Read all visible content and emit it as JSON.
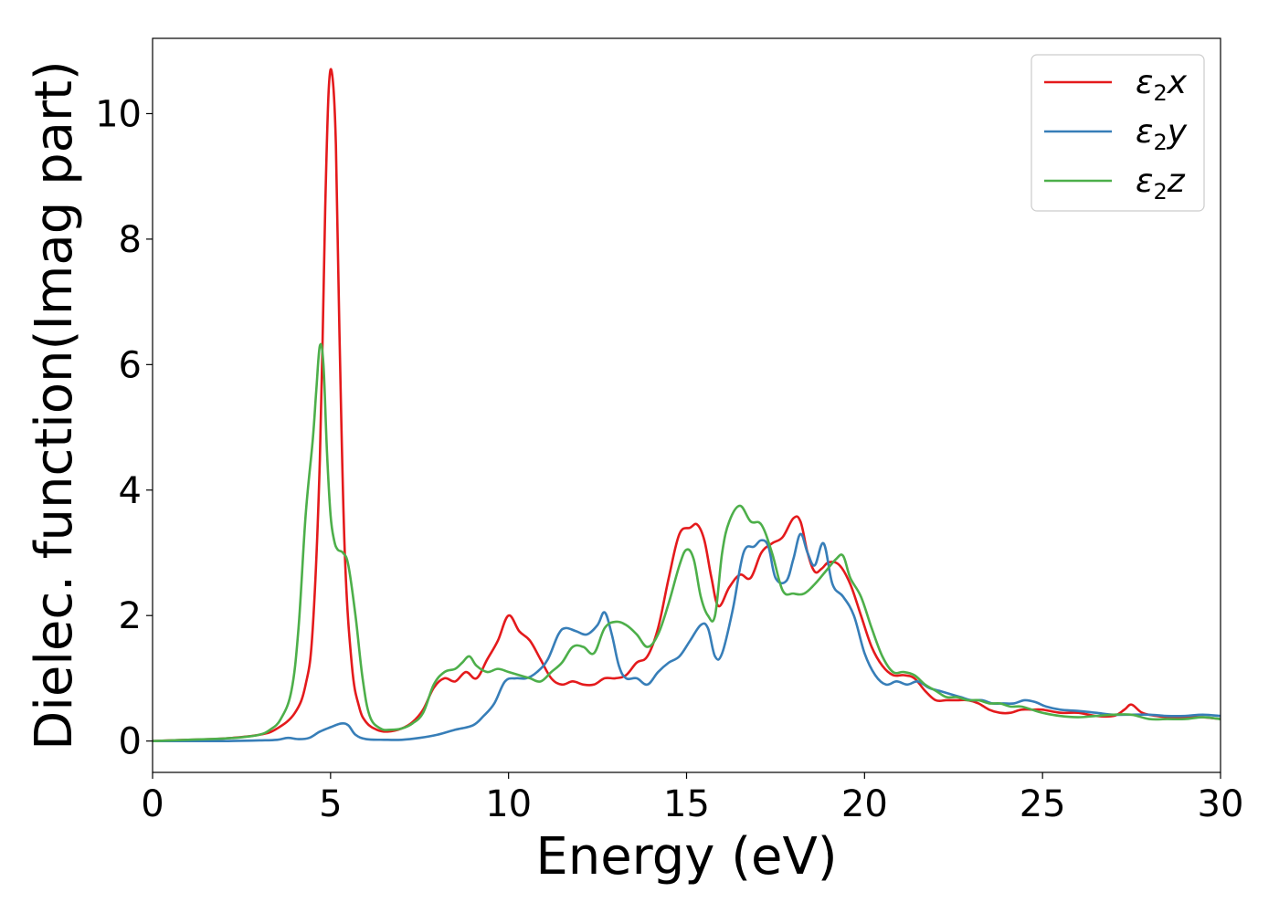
{
  "chart_data": {
    "type": "line",
    "title": "",
    "xlabel": "Energy (eV)",
    "ylabel": "Dielec. function(Imag part)",
    "xlim": [
      0,
      30
    ],
    "ylim": [
      -0.5,
      11.2
    ],
    "xticks": [
      0,
      5,
      10,
      15,
      20,
      25,
      30
    ],
    "yticks": [
      0,
      2,
      4,
      6,
      8,
      10
    ],
    "grid": false,
    "legend_position": "top-right",
    "series": [
      {
        "name": "ε₂x",
        "legend": {
          "base": "ε",
          "sub": "2",
          "suffix": "x"
        },
        "color": "#e41a1c",
        "x": [
          0,
          1,
          2,
          3,
          3.5,
          4,
          4.3,
          4.5,
          4.7,
          4.85,
          4.95,
          5.05,
          5.15,
          5.25,
          5.4,
          5.6,
          5.8,
          6.0,
          6.3,
          6.6,
          7.0,
          7.3,
          7.6,
          7.9,
          8.2,
          8.5,
          8.8,
          9.1,
          9.4,
          9.7,
          10.0,
          10.3,
          10.6,
          10.9,
          11.2,
          11.5,
          11.8,
          12.1,
          12.4,
          12.7,
          13.0,
          13.3,
          13.6,
          13.9,
          14.2,
          14.5,
          14.8,
          15.1,
          15.3,
          15.5,
          15.7,
          15.9,
          16.2,
          16.5,
          16.8,
          17.1,
          17.4,
          17.7,
          18.0,
          18.2,
          18.4,
          18.6,
          18.8,
          19.0,
          19.3,
          19.6,
          19.9,
          20.2,
          20.5,
          20.8,
          21.1,
          21.4,
          21.7,
          22.0,
          22.3,
          22.6,
          22.9,
          23.2,
          23.5,
          23.8,
          24.1,
          24.4,
          24.7,
          25.0,
          25.5,
          26.0,
          26.5,
          27.0,
          27.3,
          27.5,
          27.8,
          28.2,
          28.6,
          29.0,
          29.5,
          30.0
        ],
        "y": [
          0.0,
          0.02,
          0.04,
          0.1,
          0.2,
          0.45,
          0.9,
          1.8,
          4.5,
          8.5,
          10.4,
          10.6,
          9.5,
          6.5,
          3.0,
          1.2,
          0.55,
          0.3,
          0.18,
          0.15,
          0.2,
          0.3,
          0.5,
          0.85,
          1.0,
          0.95,
          1.1,
          1.0,
          1.3,
          1.6,
          2.0,
          1.75,
          1.6,
          1.3,
          1.0,
          0.9,
          0.95,
          0.9,
          0.9,
          1.0,
          1.0,
          1.05,
          1.25,
          1.35,
          1.8,
          2.6,
          3.3,
          3.4,
          3.45,
          3.2,
          2.6,
          2.15,
          2.45,
          2.65,
          2.6,
          3.0,
          3.15,
          3.25,
          3.55,
          3.5,
          3.0,
          2.7,
          2.75,
          2.85,
          2.8,
          2.5,
          2.0,
          1.5,
          1.2,
          1.05,
          1.05,
          1.0,
          0.8,
          0.65,
          0.65,
          0.65,
          0.65,
          0.6,
          0.5,
          0.45,
          0.45,
          0.5,
          0.5,
          0.5,
          0.45,
          0.45,
          0.4,
          0.4,
          0.5,
          0.58,
          0.45,
          0.4,
          0.38,
          0.38,
          0.38,
          0.35
        ]
      },
      {
        "name": "ε₂y",
        "legend": {
          "base": "ε",
          "sub": "2",
          "suffix": "y"
        },
        "color": "#377eb8",
        "x": [
          0,
          1,
          2,
          3,
          3.5,
          3.8,
          4.1,
          4.4,
          4.7,
          5.0,
          5.3,
          5.5,
          5.7,
          6.0,
          6.5,
          7.0,
          7.5,
          8.0,
          8.5,
          9.0,
          9.3,
          9.6,
          9.9,
          10.2,
          10.5,
          10.8,
          11.1,
          11.4,
          11.6,
          11.9,
          12.2,
          12.5,
          12.7,
          12.9,
          13.1,
          13.3,
          13.6,
          13.9,
          14.2,
          14.5,
          14.8,
          15.1,
          15.4,
          15.6,
          15.8,
          16.0,
          16.3,
          16.6,
          16.9,
          17.1,
          17.3,
          17.5,
          17.8,
          18.0,
          18.2,
          18.4,
          18.6,
          18.85,
          19.1,
          19.4,
          19.7,
          20.0,
          20.3,
          20.6,
          20.9,
          21.2,
          21.5,
          21.8,
          22.1,
          22.4,
          22.7,
          23.0,
          23.3,
          23.6,
          23.9,
          24.2,
          24.5,
          24.8,
          25.1,
          25.5,
          26.0,
          26.5,
          27.0,
          27.5,
          28.0,
          28.5,
          29.0,
          29.5,
          30.0
        ],
        "y": [
          0.0,
          0.0,
          0.0,
          0.01,
          0.02,
          0.05,
          0.03,
          0.05,
          0.15,
          0.22,
          0.28,
          0.25,
          0.1,
          0.03,
          0.02,
          0.02,
          0.05,
          0.1,
          0.18,
          0.25,
          0.4,
          0.6,
          0.95,
          1.0,
          1.0,
          1.1,
          1.3,
          1.7,
          1.8,
          1.75,
          1.7,
          1.85,
          2.05,
          1.7,
          1.2,
          1.0,
          1.0,
          0.9,
          1.1,
          1.25,
          1.35,
          1.6,
          1.85,
          1.8,
          1.35,
          1.4,
          2.1,
          3.0,
          3.1,
          3.2,
          3.1,
          2.6,
          2.55,
          2.9,
          3.3,
          3.0,
          2.8,
          3.15,
          2.5,
          2.3,
          2.0,
          1.4,
          1.05,
          0.9,
          0.95,
          0.9,
          0.95,
          0.85,
          0.8,
          0.75,
          0.7,
          0.65,
          0.65,
          0.6,
          0.6,
          0.6,
          0.65,
          0.62,
          0.55,
          0.5,
          0.48,
          0.45,
          0.42,
          0.42,
          0.42,
          0.4,
          0.4,
          0.42,
          0.4
        ]
      },
      {
        "name": "ε₂z",
        "legend": {
          "base": "ε",
          "sub": "2",
          "suffix": "z"
        },
        "color": "#4daf4a",
        "x": [
          0,
          1,
          2,
          2.5,
          3.0,
          3.3,
          3.6,
          3.9,
          4.1,
          4.3,
          4.5,
          4.6,
          4.7,
          4.8,
          4.9,
          5.0,
          5.1,
          5.2,
          5.35,
          5.5,
          5.7,
          5.9,
          6.1,
          6.4,
          6.7,
          7.0,
          7.3,
          7.6,
          7.9,
          8.2,
          8.5,
          8.7,
          8.9,
          9.1,
          9.4,
          9.7,
          10.0,
          10.3,
          10.6,
          10.9,
          11.2,
          11.5,
          11.8,
          12.1,
          12.4,
          12.7,
          13.0,
          13.3,
          13.6,
          13.9,
          14.2,
          14.5,
          14.8,
          15.0,
          15.2,
          15.4,
          15.6,
          15.8,
          16.0,
          16.2,
          16.5,
          16.8,
          17.1,
          17.4,
          17.7,
          18.0,
          18.3,
          18.6,
          18.9,
          19.2,
          19.4,
          19.6,
          19.9,
          20.2,
          20.5,
          20.8,
          21.1,
          21.4,
          21.7,
          22.0,
          22.3,
          22.6,
          22.9,
          23.2,
          23.5,
          23.8,
          24.1,
          24.4,
          24.7,
          25.0,
          25.5,
          26.0,
          26.5,
          27.0,
          27.5,
          28.0,
          28.5,
          29.0,
          29.5,
          30.0
        ],
        "y": [
          0.0,
          0.02,
          0.04,
          0.06,
          0.1,
          0.18,
          0.35,
          0.8,
          1.8,
          3.6,
          4.8,
          5.6,
          6.3,
          6.0,
          4.6,
          3.6,
          3.2,
          3.05,
          3.0,
          2.8,
          2.0,
          1.0,
          0.4,
          0.2,
          0.18,
          0.2,
          0.28,
          0.45,
          0.9,
          1.1,
          1.15,
          1.25,
          1.35,
          1.2,
          1.1,
          1.15,
          1.1,
          1.05,
          1.0,
          0.95,
          1.1,
          1.25,
          1.5,
          1.5,
          1.4,
          1.8,
          1.9,
          1.85,
          1.7,
          1.5,
          1.7,
          2.2,
          2.8,
          3.05,
          2.9,
          2.3,
          2.0,
          2.0,
          3.0,
          3.5,
          3.75,
          3.5,
          3.45,
          3.0,
          2.4,
          2.35,
          2.35,
          2.5,
          2.7,
          2.9,
          2.95,
          2.6,
          2.3,
          1.8,
          1.35,
          1.1,
          1.1,
          1.05,
          0.9,
          0.8,
          0.7,
          0.7,
          0.65,
          0.65,
          0.6,
          0.6,
          0.55,
          0.55,
          0.5,
          0.45,
          0.4,
          0.38,
          0.4,
          0.42,
          0.42,
          0.35,
          0.35,
          0.35,
          0.38,
          0.35
        ]
      }
    ]
  }
}
